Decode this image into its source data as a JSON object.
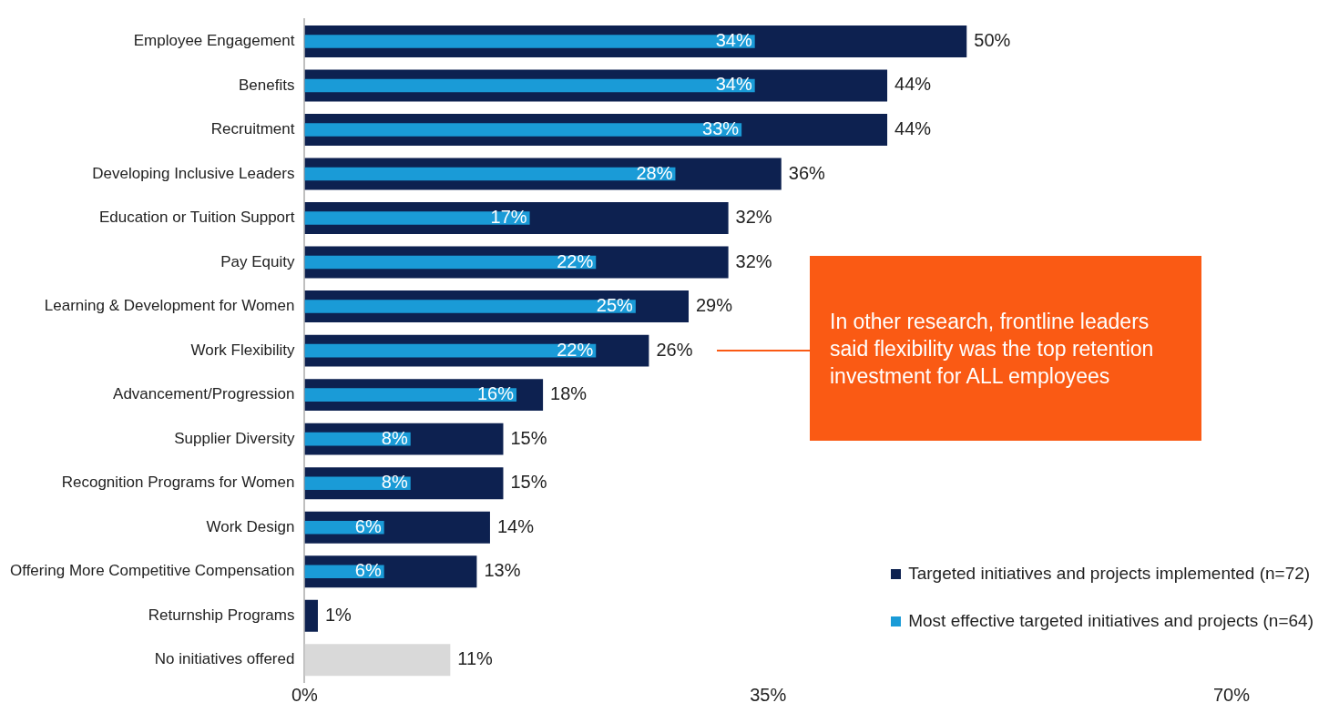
{
  "chart_data": {
    "type": "bar",
    "orientation": "horizontal",
    "categories": [
      "Employee Engagement",
      "Benefits",
      "Recruitment",
      "Developing Inclusive Leaders",
      "Education or Tuition Support",
      "Pay Equity",
      "Learning & Development for Women",
      "Work Flexibility",
      "Advancement/Progression",
      "Supplier Diversity",
      "Recognition Programs for Women",
      "Work Design",
      "Offering More Competitive Compensation",
      "Returnship Programs",
      "No initiatives offered"
    ],
    "series": [
      {
        "name": "Targeted initiatives and projects implemented (n=72)",
        "color": "#0d2150",
        "colors": [
          "#0d2150",
          "#0d2150",
          "#0d2150",
          "#0d2150",
          "#0d2150",
          "#0d2150",
          "#0d2150",
          "#0d2150",
          "#0d2150",
          "#0d2150",
          "#0d2150",
          "#0d2150",
          "#0d2150",
          "#0d2150",
          "#d9d9d9"
        ],
        "values": [
          50,
          44,
          44,
          36,
          32,
          32,
          29,
          26,
          18,
          15,
          15,
          14,
          13,
          1,
          11
        ],
        "value_labels": [
          "50%",
          "44%",
          "44%",
          "36%",
          "32%",
          "32%",
          "29%",
          "26%",
          "18%",
          "15%",
          "15%",
          "14%",
          "13%",
          "1%",
          "11%"
        ]
      },
      {
        "name": "Most effective targeted initiatives and projects (n=64)",
        "color": "#1a9bd7",
        "values": [
          34,
          34,
          33,
          28,
          17,
          22,
          25,
          22,
          16,
          8,
          8,
          6,
          6,
          null,
          null
        ],
        "value_labels": [
          "34%",
          "34%",
          "33%",
          "28%",
          "17%",
          "22%",
          "25%",
          "22%",
          "16%",
          "8%",
          "8%",
          "6%",
          "6%",
          null,
          null
        ]
      }
    ],
    "xlim": [
      0,
      70
    ],
    "xticks": [
      {
        "value": 0,
        "label": "0%"
      },
      {
        "value": 35,
        "label": "35%"
      },
      {
        "value": 70,
        "label": "70%"
      }
    ],
    "legend": "bottom right",
    "annotations": [
      "In other research, frontline leaders said flexibility was the top retention investment for ALL employees"
    ]
  }
}
